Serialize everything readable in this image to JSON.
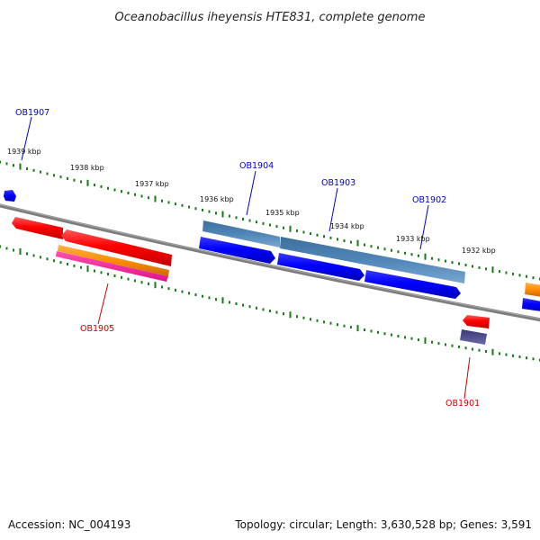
{
  "title": "Oceanobacillus iheyensis HTE831, complete genome",
  "footer": {
    "accession": "Accession: NC_004193",
    "summary": "Topology: circular; Length: 3,630,528 bp; Genes: 3,591"
  },
  "colors": {
    "backbone": "#808080",
    "tick": "#1a7a1a",
    "label_blue": "#0000cc",
    "label_red": "#cc0000"
  },
  "ticks": [
    "1939 kbp",
    "1938 kbp",
    "1937 kbp",
    "1936 kbp",
    "1935 kbp",
    "1934 kbp",
    "1933 kbp",
    "1932 kbp"
  ],
  "gene_labels": [
    {
      "id": "OB1907",
      "color": "blue"
    },
    {
      "id": "OB1904",
      "color": "blue"
    },
    {
      "id": "OB1903",
      "color": "blue"
    },
    {
      "id": "OB1902",
      "color": "blue"
    },
    {
      "id": "OB1905",
      "color": "red"
    },
    {
      "id": "OB1901",
      "color": "red"
    }
  ]
}
